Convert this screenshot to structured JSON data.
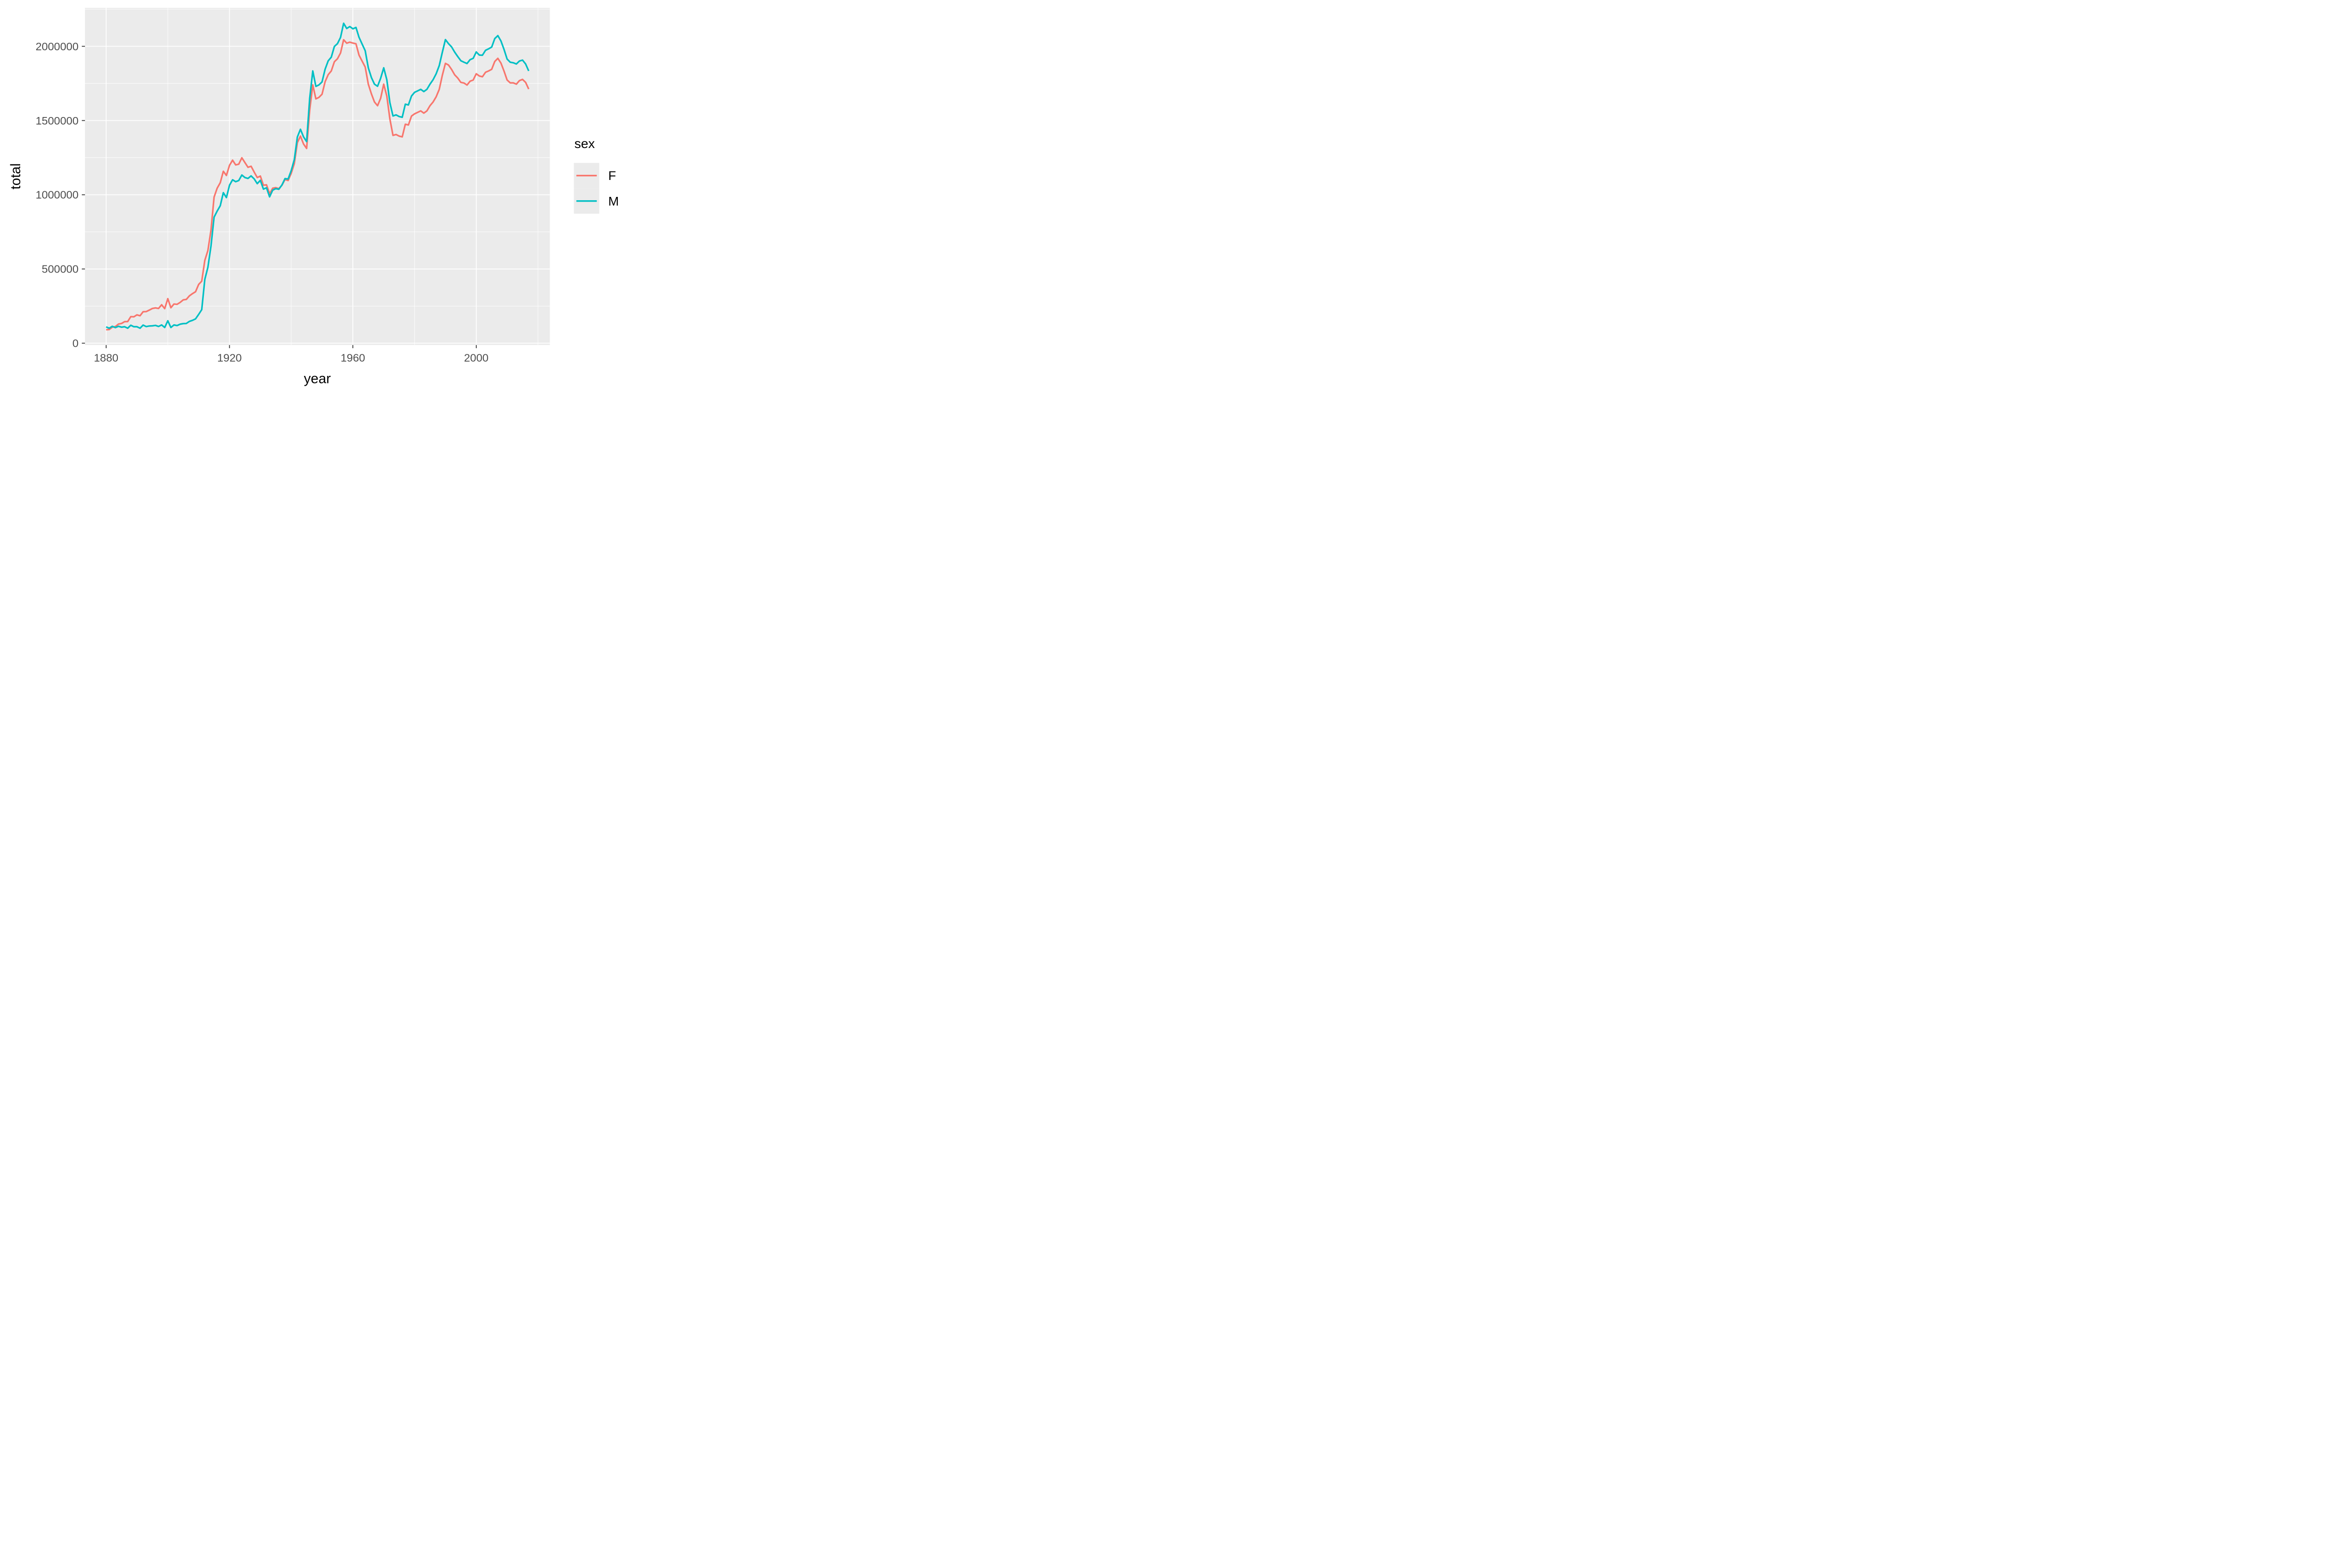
{
  "chart_data": {
    "type": "line",
    "title": "",
    "xlabel": "year",
    "ylabel": "total",
    "grid": true,
    "panel_background": "#EBEBEB",
    "grid_color": "#FFFFFF",
    "tick_label_color": "#4D4D4D",
    "tick_mark_color": "#333333",
    "axis_title_color": "#000000",
    "xlim": [
      1873.15,
      2023.85
    ],
    "ylim": [
      -12243,
      2258947
    ],
    "x_major_ticks": [
      1880,
      1920,
      1960,
      2000
    ],
    "x_major_labels": [
      "1880",
      "1920",
      "1960",
      "2000"
    ],
    "x_minor_ticks": [
      1900,
      1940,
      1980,
      2020
    ],
    "y_major_ticks": [
      0,
      500000,
      1000000,
      1500000,
      2000000
    ],
    "y_major_labels": [
      "0",
      "500000",
      "1000000",
      "1500000",
      "2000000"
    ],
    "y_minor_ticks": [
      250000,
      750000,
      1250000,
      1750000,
      2250000
    ],
    "legend": {
      "title": "sex",
      "position": "right",
      "key_fill": "#EBEBEB"
    },
    "x": [
      1880,
      1881,
      1882,
      1883,
      1884,
      1885,
      1886,
      1887,
      1888,
      1889,
      1890,
      1891,
      1892,
      1893,
      1894,
      1895,
      1896,
      1897,
      1898,
      1899,
      1900,
      1901,
      1902,
      1903,
      1904,
      1905,
      1906,
      1907,
      1908,
      1909,
      1910,
      1911,
      1912,
      1913,
      1914,
      1915,
      1916,
      1917,
      1918,
      1919,
      1920,
      1921,
      1922,
      1923,
      1924,
      1925,
      1926,
      1927,
      1928,
      1929,
      1930,
      1931,
      1932,
      1933,
      1934,
      1935,
      1936,
      1937,
      1938,
      1939,
      1940,
      1941,
      1942,
      1943,
      1944,
      1945,
      1946,
      1947,
      1948,
      1949,
      1950,
      1951,
      1952,
      1953,
      1954,
      1955,
      1956,
      1957,
      1958,
      1959,
      1960,
      1961,
      1962,
      1963,
      1964,
      1965,
      1966,
      1967,
      1968,
      1969,
      1970,
      1971,
      1972,
      1973,
      1974,
      1975,
      1976,
      1977,
      1978,
      1979,
      1980,
      1981,
      1982,
      1983,
      1984,
      1985,
      1986,
      1987,
      1988,
      1989,
      1990,
      1991,
      1992,
      1993,
      1994,
      1995,
      1996,
      1997,
      1998,
      1999,
      2000,
      2001,
      2002,
      2003,
      2004,
      2005,
      2006,
      2007,
      2008,
      2009,
      2010,
      2011,
      2012,
      2013,
      2014,
      2015,
      2016,
      2017
    ],
    "series": [
      {
        "name": "F",
        "color": "#F8766D",
        "values": [
          91000,
          92000,
          108000,
          112000,
          129000,
          133000,
          145000,
          146000,
          179000,
          178000,
          191000,
          185000,
          212000,
          213000,
          223000,
          234000,
          238000,
          234000,
          259000,
          233000,
          300000,
          239000,
          264000,
          262000,
          275000,
          292000,
          295000,
          319000,
          334000,
          347000,
          396000,
          418000,
          558000,
          625000,
          762000,
          984000,
          1044000,
          1081000,
          1158000,
          1130000,
          1198000,
          1233000,
          1201000,
          1206000,
          1249000,
          1217000,
          1185000,
          1192000,
          1153000,
          1116000,
          1126000,
          1064000,
          1067000,
          1007000,
          1044000,
          1048000,
          1041000,
          1064000,
          1103000,
          1096000,
          1144000,
          1209000,
          1351000,
          1395000,
          1342000,
          1312000,
          1570000,
          1740000,
          1646000,
          1656000,
          1677000,
          1762000,
          1809000,
          1834000,
          1896000,
          1916000,
          1955000,
          2044000,
          2021000,
          2028000,
          2022000,
          2017000,
          1940000,
          1900000,
          1860000,
          1745000,
          1680000,
          1625000,
          1600000,
          1650000,
          1745000,
          1665000,
          1510000,
          1400000,
          1406000,
          1395000,
          1390000,
          1475000,
          1470000,
          1530000,
          1545000,
          1555000,
          1565000,
          1550000,
          1565000,
          1600000,
          1625000,
          1660000,
          1710000,
          1805000,
          1885000,
          1874000,
          1844000,
          1808000,
          1786000,
          1757000,
          1753000,
          1739000,
          1765000,
          1773000,
          1815000,
          1800000,
          1795000,
          1825000,
          1834000,
          1845000,
          1898000,
          1919000,
          1887000,
          1833000,
          1773000,
          1754000,
          1754000,
          1745000,
          1769000,
          1777000,
          1757000,
          1712000
        ]
      },
      {
        "name": "M",
        "color": "#00BFC4",
        "values": [
          110000,
          101000,
          114000,
          105000,
          114000,
          108000,
          111000,
          101000,
          121000,
          111000,
          111000,
          101000,
          122000,
          112000,
          116000,
          117000,
          120000,
          113000,
          123000,
          106000,
          151000,
          106000,
          123000,
          119000,
          128000,
          132000,
          133000,
          147000,
          154000,
          164000,
          194000,
          226000,
          430000,
          512000,
          655000,
          849000,
          890000,
          926000,
          1014000,
          981000,
          1064000,
          1101000,
          1088000,
          1096000,
          1133000,
          1116000,
          1110000,
          1127000,
          1107000,
          1075000,
          1097000,
          1038000,
          1047000,
          986000,
          1031000,
          1041000,
          1037000,
          1066000,
          1109000,
          1106000,
          1162000,
          1236000,
          1389000,
          1441000,
          1390000,
          1358000,
          1650000,
          1834000,
          1730000,
          1740000,
          1760000,
          1846000,
          1902000,
          1927000,
          1999000,
          2018000,
          2060000,
          2155000,
          2120000,
          2133000,
          2118000,
          2127000,
          2060000,
          2015000,
          1970000,
          1855000,
          1790000,
          1745000,
          1731000,
          1785000,
          1855000,
          1775000,
          1620000,
          1531000,
          1538000,
          1527000,
          1522000,
          1610000,
          1605000,
          1665000,
          1690000,
          1700000,
          1710000,
          1695000,
          1710000,
          1745000,
          1775000,
          1815000,
          1870000,
          1960000,
          2045000,
          2018000,
          1996000,
          1961000,
          1931000,
          1903000,
          1893000,
          1884000,
          1910000,
          1919000,
          1962000,
          1941000,
          1940000,
          1973000,
          1983000,
          1995000,
          2052000,
          2072000,
          2036000,
          1979000,
          1914000,
          1893000,
          1889000,
          1881000,
          1901000,
          1907000,
          1881000,
          1834000
        ]
      }
    ]
  }
}
